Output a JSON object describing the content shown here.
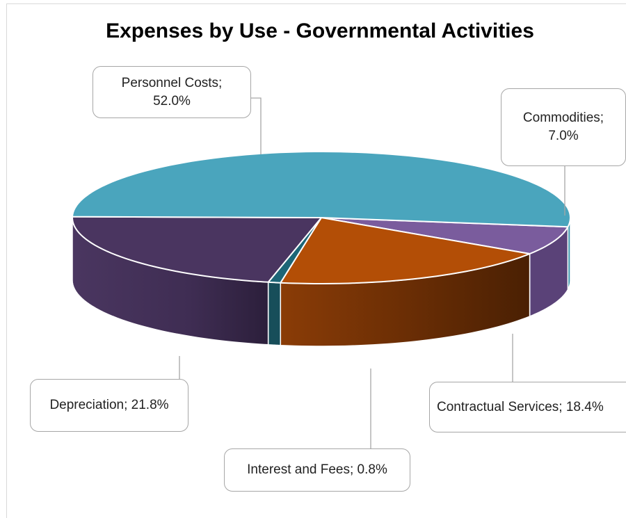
{
  "chart_data": {
    "type": "pie",
    "title": "Expenses by Use - Governmental Activities",
    "slices": [
      {
        "label": "Personnel Costs",
        "value": 52.0,
        "display": "52.0%",
        "color": "#4aa5bd",
        "side": "#3a93aa"
      },
      {
        "label": "Commodities",
        "value": 7.0,
        "display": "7.0%",
        "color": "#7a5c9d",
        "side": "#5a4278"
      },
      {
        "label": "Contractual Services",
        "value": 18.4,
        "display": "18.4%",
        "color": "#b34e06",
        "side": "#6b2e05"
      },
      {
        "label": "Interest and Fees",
        "value": 0.8,
        "display": "0.8%",
        "color": "#1d6677",
        "side": "#174e5a"
      },
      {
        "label": "Depreciation",
        "value": 21.8,
        "display": "21.8%",
        "color": "#4a3560",
        "side": "#3a2a4d"
      }
    ]
  },
  "callouts": {
    "personnel": {
      "name": "Personnel Costs;",
      "pct": "52.0%"
    },
    "commodities": {
      "name": "Commodities;",
      "pct": "7.0%"
    },
    "contractual": {
      "text": "Contractual Services; 18.4%"
    },
    "interest": {
      "text": "Interest and Fees; 0.8%"
    },
    "depreciation": {
      "text": "Depreciation; 21.8%"
    }
  }
}
